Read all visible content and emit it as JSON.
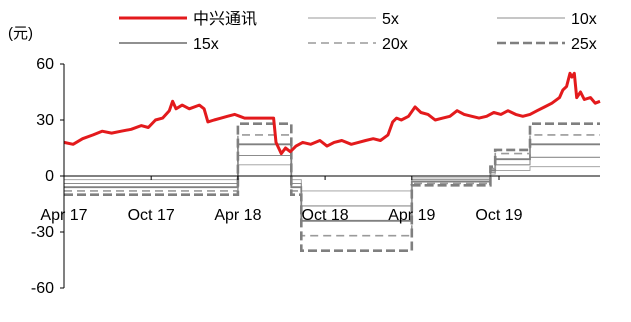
{
  "chart_data": {
    "type": "line",
    "ylabel": "(元)",
    "ylim": [
      -60,
      60
    ],
    "yticks": [
      60,
      30,
      0,
      -30,
      -60
    ],
    "xlim": [
      "2017-04-01",
      "2020-04-30"
    ],
    "xticks": [
      {
        "label": "Apr 17",
        "date": "2017-04-01"
      },
      {
        "label": "Oct 17",
        "date": "2017-10-01"
      },
      {
        "label": "Apr 18",
        "date": "2018-04-01"
      },
      {
        "label": "Oct 18",
        "date": "2018-10-01"
      },
      {
        "label": "Apr 19",
        "date": "2019-04-01"
      },
      {
        "label": "Oct 19",
        "date": "2019-10-01"
      }
    ],
    "legend_position": "top",
    "series": [
      {
        "name": "中兴通讯",
        "color": "#e31a1c",
        "style": "solid",
        "points": [
          [
            "2017-04-01",
            18
          ],
          [
            "2017-04-20",
            17
          ],
          [
            "2017-05-10",
            20
          ],
          [
            "2017-06-01",
            22
          ],
          [
            "2017-06-20",
            24
          ],
          [
            "2017-07-10",
            23
          ],
          [
            "2017-07-30",
            24
          ],
          [
            "2017-08-20",
            25
          ],
          [
            "2017-09-10",
            27
          ],
          [
            "2017-09-25",
            26
          ],
          [
            "2017-10-10",
            30
          ],
          [
            "2017-10-25",
            31
          ],
          [
            "2017-11-08",
            35
          ],
          [
            "2017-11-15",
            40
          ],
          [
            "2017-11-22",
            36
          ],
          [
            "2017-12-05",
            38
          ],
          [
            "2017-12-20",
            36
          ],
          [
            "2018-01-10",
            38
          ],
          [
            "2018-01-20",
            36
          ],
          [
            "2018-01-28",
            29
          ],
          [
            "2018-02-10",
            30
          ],
          [
            "2018-02-25",
            31
          ],
          [
            "2018-03-10",
            32
          ],
          [
            "2018-03-25",
            33
          ],
          [
            "2018-04-05",
            32
          ],
          [
            "2018-04-15",
            31
          ],
          [
            "2018-06-15",
            31
          ],
          [
            "2018-06-20",
            18
          ],
          [
            "2018-07-01",
            12
          ],
          [
            "2018-07-10",
            15
          ],
          [
            "2018-07-20",
            13
          ],
          [
            "2018-08-01",
            16
          ],
          [
            "2018-08-15",
            18
          ],
          [
            "2018-09-01",
            17
          ],
          [
            "2018-09-20",
            19
          ],
          [
            "2018-10-05",
            16
          ],
          [
            "2018-10-20",
            18
          ],
          [
            "2018-11-05",
            19
          ],
          [
            "2018-11-25",
            17
          ],
          [
            "2018-12-10",
            18
          ],
          [
            "2018-12-25",
            19
          ],
          [
            "2019-01-10",
            20
          ],
          [
            "2019-01-25",
            19
          ],
          [
            "2019-02-10",
            22
          ],
          [
            "2019-02-20",
            29
          ],
          [
            "2019-02-28",
            31
          ],
          [
            "2019-03-10",
            30
          ],
          [
            "2019-03-25",
            32
          ],
          [
            "2019-04-08",
            37
          ],
          [
            "2019-04-20",
            34
          ],
          [
            "2019-05-05",
            33
          ],
          [
            "2019-05-20",
            30
          ],
          [
            "2019-06-05",
            31
          ],
          [
            "2019-06-20",
            32
          ],
          [
            "2019-07-05",
            35
          ],
          [
            "2019-07-20",
            33
          ],
          [
            "2019-08-05",
            32
          ],
          [
            "2019-08-20",
            31
          ],
          [
            "2019-09-05",
            32
          ],
          [
            "2019-09-20",
            34
          ],
          [
            "2019-10-05",
            33
          ],
          [
            "2019-10-20",
            35
          ],
          [
            "2019-11-05",
            33
          ],
          [
            "2019-11-20",
            32
          ],
          [
            "2019-12-05",
            33
          ],
          [
            "2019-12-20",
            35
          ],
          [
            "2020-01-05",
            37
          ],
          [
            "2020-01-20",
            39
          ],
          [
            "2020-02-05",
            42
          ],
          [
            "2020-02-12",
            46
          ],
          [
            "2020-02-20",
            48
          ],
          [
            "2020-02-27",
            55
          ],
          [
            "2020-03-02",
            53
          ],
          [
            "2020-03-07",
            55
          ],
          [
            "2020-03-12",
            42
          ],
          [
            "2020-03-20",
            45
          ],
          [
            "2020-03-28",
            41
          ],
          [
            "2020-04-10",
            42
          ],
          [
            "2020-04-20",
            39
          ],
          [
            "2020-04-30",
            40
          ]
        ]
      },
      {
        "name": "5x",
        "color": "#9a9a9a",
        "style": "solid",
        "width": 0.9,
        "steps": [
          [
            "2017-04-01",
            -2
          ],
          [
            "2018-04-01",
            6
          ],
          [
            "2018-07-22",
            -2
          ],
          [
            "2018-08-12",
            -8
          ],
          [
            "2019-04-01",
            -1
          ],
          [
            "2019-09-13",
            1
          ],
          [
            "2019-09-23",
            3
          ],
          [
            "2019-12-05",
            5
          ]
        ],
        "end": "2020-04-30"
      },
      {
        "name": "10x",
        "color": "#8c8c8c",
        "style": "solid",
        "width": 1.1,
        "steps": [
          [
            "2017-04-01",
            -4
          ],
          [
            "2018-04-01",
            11
          ],
          [
            "2018-07-22",
            -4
          ],
          [
            "2018-08-12",
            -16
          ],
          [
            "2019-04-01",
            -2
          ],
          [
            "2019-09-13",
            2
          ],
          [
            "2019-09-23",
            6
          ],
          [
            "2019-12-05",
            10
          ]
        ],
        "end": "2020-04-30"
      },
      {
        "name": "15x",
        "color": "#808080",
        "style": "solid",
        "width": 1.8,
        "steps": [
          [
            "2017-04-01",
            -6
          ],
          [
            "2018-04-01",
            17
          ],
          [
            "2018-07-22",
            -6
          ],
          [
            "2018-08-12",
            -24
          ],
          [
            "2019-04-01",
            -3
          ],
          [
            "2019-09-13",
            3
          ],
          [
            "2019-09-23",
            9
          ],
          [
            "2019-12-05",
            17
          ]
        ],
        "end": "2020-04-30"
      },
      {
        "name": "20x",
        "color": "#9a9a9a",
        "style": "dashed",
        "width": 1.6,
        "steps": [
          [
            "2017-04-01",
            -8
          ],
          [
            "2018-04-01",
            22
          ],
          [
            "2018-07-22",
            -8
          ],
          [
            "2018-08-12",
            -32
          ],
          [
            "2019-04-01",
            -4
          ],
          [
            "2019-09-13",
            4
          ],
          [
            "2019-09-23",
            12
          ],
          [
            "2019-12-05",
            22
          ]
        ],
        "end": "2020-04-30"
      },
      {
        "name": "25x",
        "color": "#7f7f7f",
        "style": "dashed",
        "width": 2.6,
        "steps": [
          [
            "2017-04-01",
            -10
          ],
          [
            "2018-04-01",
            28
          ],
          [
            "2018-07-22",
            -10
          ],
          [
            "2018-08-12",
            -40
          ],
          [
            "2019-04-01",
            -5
          ],
          [
            "2019-09-13",
            5
          ],
          [
            "2019-09-23",
            14
          ],
          [
            "2019-12-05",
            28
          ]
        ],
        "end": "2020-04-30"
      }
    ]
  }
}
